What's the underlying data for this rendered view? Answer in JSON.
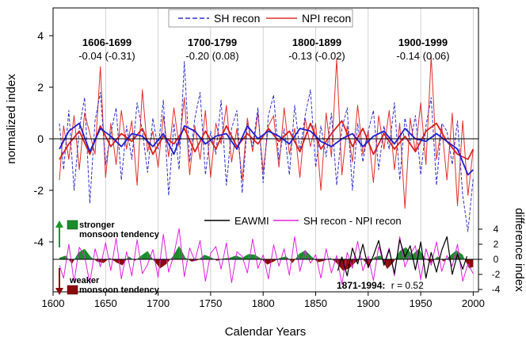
{
  "chart_data": {
    "type": "line",
    "xlabel": "Calendar Years",
    "ylabel": "normalized index",
    "ylabel_right": "difference index",
    "xlim": [
      1600,
      2005
    ],
    "ylim": [
      -5.2,
      5
    ],
    "x_ticks": [
      "1600",
      "1650",
      "1700",
      "1750",
      "1800",
      "1850",
      "1900",
      "1950",
      "2000"
    ],
    "y_ticks": [
      "4",
      "2",
      "0",
      "-2",
      "-4"
    ],
    "y2_ticks": [
      "4",
      "2",
      "0",
      "-2",
      "-4"
    ],
    "grid": "vertical",
    "legend_top": {
      "placement": "top-center",
      "items": [
        {
          "label": "SH recon",
          "color": "#3333cc",
          "style": "dashed"
        },
        {
          "label": "NPI recon",
          "color": "#e0302a",
          "style": "solid"
        }
      ]
    },
    "legend_bottom": {
      "placement": "lower-center",
      "items": [
        {
          "label": "EAWMI",
          "color": "#000000"
        },
        {
          "label": "SH recon - NPI recon",
          "color": "#e020e0"
        }
      ]
    },
    "periods": [
      {
        "label": "1606-1699",
        "stat": "-0.04 (-0.31)"
      },
      {
        "label": "1700-1799",
        "stat": "-0.20 (0.08)"
      },
      {
        "label": "1800-1899",
        "stat": "-0.13 (-0.02)"
      },
      {
        "label": "1900-1999",
        "stat": "-0.14 (0.06)"
      }
    ],
    "annotations": {
      "stronger_line1": "stronger",
      "stronger_line2": "monsoon tendency",
      "weaker_line1": "weaker",
      "weaker_line2": "monsoon tendency",
      "corr_label": "1871-1994:",
      "corr_r": "r = 0.52"
    },
    "series": [
      {
        "name": "SH recon",
        "color": "#3333cc",
        "x": [
          1606,
          1610,
          1615,
          1620,
          1625,
          1630,
          1635,
          1640,
          1645,
          1650,
          1655,
          1660,
          1665,
          1670,
          1675,
          1680,
          1685,
          1690,
          1695,
          1700,
          1705,
          1710,
          1715,
          1720,
          1725,
          1730,
          1735,
          1740,
          1745,
          1750,
          1755,
          1760,
          1765,
          1770,
          1775,
          1780,
          1785,
          1790,
          1795,
          1800,
          1805,
          1810,
          1815,
          1820,
          1825,
          1830,
          1835,
          1840,
          1845,
          1850,
          1855,
          1860,
          1865,
          1870,
          1875,
          1880,
          1885,
          1890,
          1895,
          1900,
          1905,
          1910,
          1915,
          1920,
          1925,
          1930,
          1935,
          1940,
          1945,
          1950,
          1955,
          1960,
          1965,
          1970,
          1975,
          1980,
          1985,
          1990,
          1995,
          2000
        ],
        "y": [
          0.6,
          -1.2,
          1.1,
          -2.0,
          0.4,
          1.6,
          -2.5,
          0.7,
          1.8,
          -1.0,
          0.2,
          1.2,
          -1.6,
          0.5,
          -0.8,
          1.4,
          0.3,
          -1.3,
          0.8,
          -0.4,
          1.5,
          -2.2,
          0.6,
          -1.2,
          3.0,
          -0.9,
          0.8,
          1.8,
          -1.4,
          0.3,
          -0.6,
          1.5,
          -1.8,
          0.4,
          1.1,
          -2.1,
          0.6,
          -0.3,
          1.2,
          -1.7,
          0.9,
          1.7,
          -0.8,
          0.4,
          -1.4,
          1.3,
          -0.5,
          0.9,
          1.9,
          -1.1,
          0.5,
          -0.7,
          1.0,
          -1.8,
          0.4,
          1.2,
          -2.0,
          0.6,
          -0.9,
          0.3,
          1.1,
          -1.2,
          0.5,
          -0.4,
          1.4,
          -1.6,
          0.8,
          -0.2,
          0.9,
          -1.4,
          0.5,
          1.6,
          -1.8,
          0.6,
          0.3,
          -1.0,
          0.7,
          -2.2,
          -3.6,
          -1.5
        ]
      },
      {
        "name": "NPI recon",
        "color": "#e0302a",
        "x": [
          1606,
          1610,
          1615,
          1620,
          1625,
          1630,
          1635,
          1640,
          1645,
          1650,
          1655,
          1660,
          1665,
          1670,
          1675,
          1680,
          1685,
          1690,
          1695,
          1700,
          1705,
          1710,
          1715,
          1720,
          1725,
          1730,
          1735,
          1740,
          1745,
          1750,
          1755,
          1760,
          1765,
          1770,
          1775,
          1780,
          1785,
          1790,
          1795,
          1800,
          1805,
          1810,
          1815,
          1820,
          1825,
          1830,
          1835,
          1840,
          1845,
          1850,
          1855,
          1860,
          1865,
          1870,
          1875,
          1880,
          1885,
          1890,
          1895,
          1900,
          1905,
          1910,
          1915,
          1920,
          1925,
          1930,
          1935,
          1940,
          1945,
          1950,
          1955,
          1960,
          1965,
          1970,
          1975,
          1980,
          1985,
          1990,
          1995,
          2000
        ],
        "y": [
          -1.6,
          0.5,
          -0.8,
          0.9,
          -1.2,
          1.0,
          0.2,
          -0.6,
          2.8,
          -1.5,
          0.6,
          -1.0,
          1.1,
          -0.4,
          0.7,
          -1.8,
          1.9,
          -0.5,
          0.3,
          -1.1,
          0.9,
          -0.7,
          1.2,
          -0.3,
          1.6,
          -1.4,
          0.5,
          -0.8,
          1.1,
          -1.5,
          0.6,
          -0.2,
          1.3,
          -0.9,
          0.4,
          -1.6,
          0.8,
          -0.5,
          1.0,
          -1.3,
          0.5,
          0.9,
          -1.1,
          1.2,
          -0.6,
          0.4,
          -1.5,
          0.8,
          -0.3,
          0.6,
          -2.0,
          1.0,
          -0.7,
          3.1,
          -1.4,
          0.5,
          -0.9,
          1.3,
          -0.6,
          0.3,
          -1.7,
          0.9,
          -0.4,
          1.1,
          -1.2,
          0.6,
          -2.7,
          0.8,
          -0.5,
          1.4,
          -1.0,
          3.2,
          -0.8,
          0.5,
          -1.6,
          1.0,
          -2.6,
          0.7,
          -2.2,
          -0.4
        ]
      },
      {
        "name": "SH recon (smoothed)",
        "color": "#2020d0",
        "x": [
          1606,
          1615,
          1625,
          1635,
          1645,
          1655,
          1665,
          1675,
          1685,
          1695,
          1705,
          1715,
          1725,
          1735,
          1745,
          1755,
          1765,
          1775,
          1785,
          1795,
          1805,
          1815,
          1825,
          1835,
          1845,
          1855,
          1865,
          1875,
          1885,
          1895,
          1905,
          1915,
          1925,
          1935,
          1945,
          1955,
          1965,
          1975,
          1985,
          1995,
          2000
        ],
        "y": [
          -0.4,
          0.3,
          0.6,
          -0.5,
          0.4,
          0.1,
          -0.3,
          0.2,
          0.1,
          -0.3,
          0.2,
          -0.6,
          0.5,
          0.3,
          -0.2,
          0.1,
          0.2,
          -0.4,
          0.5,
          0.0,
          0.3,
          0.1,
          -0.2,
          0.4,
          0.3,
          -0.1,
          -0.3,
          0.0,
          0.2,
          -0.3,
          0.1,
          0.3,
          -0.2,
          0.4,
          0.0,
          -0.1,
          0.2,
          -0.1,
          -0.4,
          -1.4,
          -1.2
        ]
      },
      {
        "name": "NPI recon (smoothed)",
        "color": "#d82020",
        "x": [
          1606,
          1615,
          1625,
          1635,
          1645,
          1655,
          1665,
          1675,
          1685,
          1695,
          1705,
          1715,
          1725,
          1735,
          1745,
          1755,
          1765,
          1775,
          1785,
          1795,
          1805,
          1815,
          1825,
          1835,
          1845,
          1855,
          1865,
          1875,
          1885,
          1895,
          1905,
          1915,
          1925,
          1935,
          1945,
          1955,
          1965,
          1975,
          1985,
          1995,
          2000
        ],
        "y": [
          -0.8,
          -0.2,
          0.3,
          -0.6,
          0.5,
          -0.3,
          0.2,
          -0.1,
          0.4,
          -0.6,
          0.1,
          -0.2,
          0.4,
          -0.5,
          0.3,
          -0.4,
          0.5,
          -0.3,
          0.2,
          -0.2,
          0.4,
          -0.1,
          0.3,
          -0.5,
          0.6,
          -0.4,
          0.2,
          0.7,
          -0.3,
          0.4,
          -0.6,
          0.2,
          -0.4,
          0.1,
          -0.5,
          0.3,
          0.6,
          -0.1,
          -0.6,
          -0.8,
          -0.4
        ]
      },
      {
        "name": "SH recon - NPI recon",
        "color": "#e020e0",
        "axis": "right",
        "x": [
          1606,
          1610,
          1615,
          1620,
          1625,
          1630,
          1635,
          1640,
          1645,
          1650,
          1655,
          1660,
          1665,
          1670,
          1675,
          1680,
          1685,
          1690,
          1695,
          1700,
          1705,
          1710,
          1715,
          1720,
          1725,
          1730,
          1735,
          1740,
          1745,
          1750,
          1755,
          1760,
          1765,
          1770,
          1775,
          1780,
          1785,
          1790,
          1795,
          1800,
          1805,
          1810,
          1815,
          1820,
          1825,
          1830,
          1835,
          1840,
          1845,
          1850,
          1855,
          1860,
          1865,
          1870,
          1875,
          1880,
          1885,
          1890,
          1895,
          1900,
          1905,
          1910,
          1915,
          1920,
          1925,
          1930,
          1935,
          1940,
          1945,
          1950,
          1955,
          1960,
          1965,
          1970,
          1975,
          1980,
          1985,
          1990,
          1995,
          2000
        ],
        "y": [
          -0.8,
          -2.5,
          2.0,
          -3.0,
          1.6,
          0.4,
          -3.2,
          1.4,
          -1.0,
          2.2,
          -1.5,
          2.8,
          -2.6,
          1.0,
          -2.2,
          2.6,
          -1.9,
          -0.7,
          1.3,
          -2.4,
          3.3,
          -1.7,
          0.6,
          4.1,
          -2.3,
          1.5,
          -0.2,
          2.5,
          -2.9,
          0.8,
          1.7,
          -1.3,
          2.2,
          -3.1,
          1.0,
          0.4,
          -1.8,
          2.7,
          -1.2,
          0.6,
          -2.6,
          1.9,
          -0.9,
          1.4,
          -2.1,
          3.0,
          -1.6,
          1.2,
          -0.5,
          0.6,
          -2.5,
          1.4,
          -1.8,
          0.5,
          -3.3,
          0.9,
          -1.2,
          2.4,
          -1.5,
          0.4,
          -2.8,
          1.7,
          -0.6,
          1.5,
          -2.2,
          3.0,
          -1.0,
          0.7,
          1.8,
          -2.7,
          1.4,
          -0.8,
          2.3,
          -1.6,
          0.5,
          -0.9,
          2.0,
          -2.9,
          -0.6,
          -1.9
        ]
      },
      {
        "name": "EAWMI",
        "color": "#000000",
        "axis": "right",
        "x": [
          1871,
          1875,
          1880,
          1885,
          1890,
          1895,
          1900,
          1905,
          1910,
          1915,
          1920,
          1925,
          1930,
          1935,
          1940,
          1945,
          1950,
          1955,
          1960,
          1965,
          1970,
          1975,
          1980,
          1985,
          1990,
          1994
        ],
        "y": [
          -1.5,
          0.3,
          -2.2,
          1.5,
          -0.6,
          2.0,
          -1.1,
          0.5,
          2.5,
          -0.8,
          1.3,
          -1.9,
          2.6,
          0.3,
          1.8,
          -1.4,
          2.3,
          -2.5,
          0.9,
          -1.7,
          1.2,
          3.0,
          -2.0,
          0.7,
          -1.3,
          0.4
        ]
      },
      {
        "name": "smoothed difference",
        "axis": "right",
        "positive_color": "#1a8c2a",
        "negative_color": "#8b0a0a",
        "x": [
          1606,
          1612,
          1618,
          1624,
          1630,
          1636,
          1642,
          1648,
          1654,
          1660,
          1666,
          1672,
          1678,
          1684,
          1690,
          1696,
          1702,
          1708,
          1714,
          1720,
          1726,
          1732,
          1738,
          1744,
          1750,
          1756,
          1762,
          1768,
          1774,
          1780,
          1786,
          1792,
          1798,
          1804,
          1810,
          1816,
          1822,
          1828,
          1834,
          1840,
          1846,
          1852,
          1858,
          1864,
          1870,
          1876,
          1882,
          1888,
          1894,
          1900,
          1906,
          1912,
          1918,
          1924,
          1930,
          1936,
          1942,
          1948,
          1954,
          1960,
          1966,
          1972,
          1978,
          1984,
          1990,
          1996,
          2000
        ],
        "y": [
          0.2,
          0.5,
          -0.6,
          0.9,
          1.4,
          0.3,
          -0.3,
          -0.5,
          0.2,
          -0.4,
          -0.8,
          0.4,
          -0.2,
          0.5,
          1.1,
          -0.2,
          -1.2,
          -0.6,
          0.4,
          1.8,
          0.2,
          -0.3,
          -0.1,
          0.6,
          0.3,
          -0.2,
          0.1,
          0.2,
          0.5,
          0.2,
          0.7,
          0.6,
          0.1,
          -0.7,
          -0.3,
          0.2,
          0.4,
          -0.5,
          0.7,
          1.2,
          0.4,
          -0.4,
          -0.2,
          0.2,
          -0.5,
          -1.5,
          -1.2,
          -0.4,
          0.2,
          -0.9,
          0.3,
          0.5,
          -1.3,
          -0.4,
          1.1,
          1.6,
          0.6,
          1.4,
          0.2,
          -0.5,
          0.4,
          -0.3,
          0.5,
          1.2,
          0.6,
          -1.2,
          -1.0
        ]
      }
    ]
  }
}
